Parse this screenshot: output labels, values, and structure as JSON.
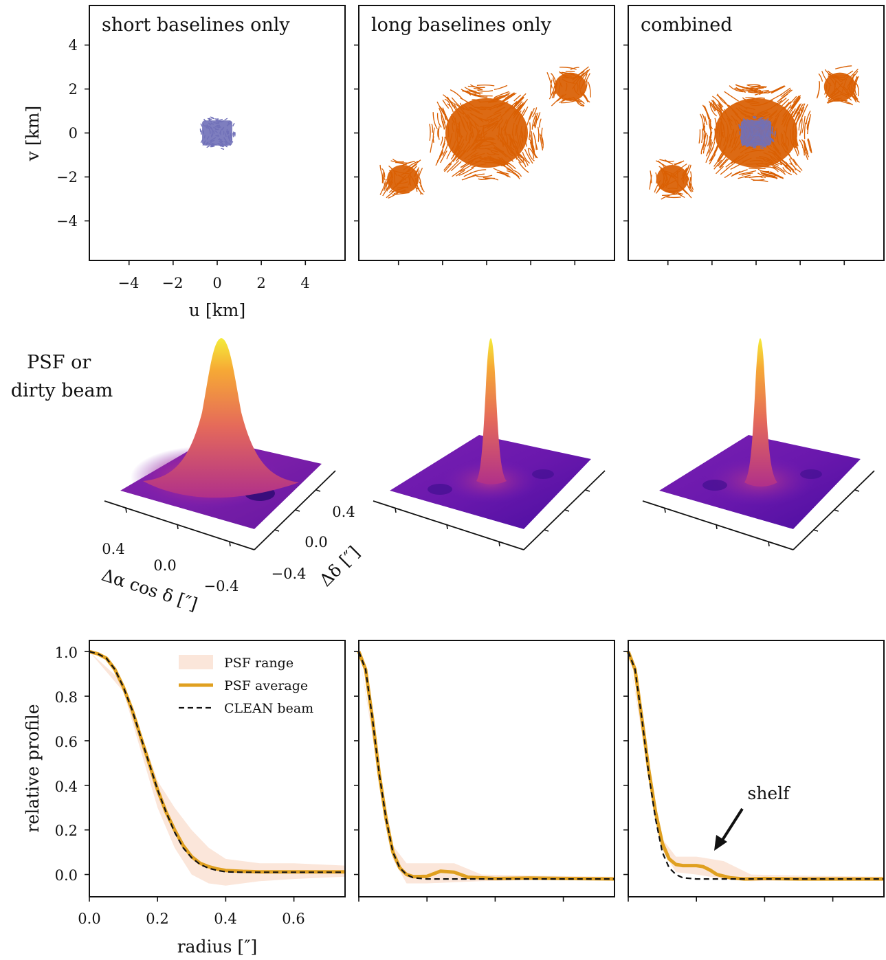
{
  "chart_data": [
    {
      "type": "scatter",
      "title": "short baselines only",
      "xlabel": "u [km]",
      "ylabel": "v [km]",
      "xlim": [
        -5.8,
        5.8
      ],
      "ylim": [
        -5.8,
        5.8
      ],
      "xticks": [
        "−4",
        "−2",
        "0",
        "2",
        "4"
      ],
      "yticks": [
        "4",
        "2",
        "0",
        "−2",
        "−4"
      ],
      "clusters": [
        {
          "name": "short",
          "color": "#7070b8",
          "center": [
            0,
            0
          ],
          "half_size": [
            0.9,
            0.75
          ]
        }
      ]
    },
    {
      "type": "scatter",
      "title": "long baselines only",
      "xlim": [
        -5.8,
        5.8
      ],
      "ylim": [
        -5.8,
        5.8
      ],
      "clusters": [
        {
          "name": "long",
          "color": "#d95f02",
          "center": [
            0,
            0
          ],
          "half_size": [
            2.6,
            2.2
          ]
        },
        {
          "name": "long",
          "color": "#d95f02",
          "center": [
            -3.8,
            -2.1
          ],
          "half_size": [
            1.0,
            0.9
          ]
        },
        {
          "name": "long",
          "color": "#d95f02",
          "center": [
            3.8,
            2.1
          ],
          "half_size": [
            1.0,
            0.9
          ]
        }
      ]
    },
    {
      "type": "scatter",
      "title": "combined",
      "xlim": [
        -5.8,
        5.8
      ],
      "ylim": [
        -5.8,
        5.8
      ],
      "clusters": [
        {
          "name": "long",
          "color": "#d95f02",
          "center": [
            0,
            0
          ],
          "half_size": [
            2.6,
            2.2
          ]
        },
        {
          "name": "long",
          "color": "#d95f02",
          "center": [
            -3.8,
            -2.1
          ],
          "half_size": [
            1.0,
            0.9
          ]
        },
        {
          "name": "long",
          "color": "#d95f02",
          "center": [
            3.8,
            2.1
          ],
          "half_size": [
            1.0,
            0.9
          ]
        },
        {
          "name": "short",
          "color": "#7070b8",
          "center": [
            0,
            0
          ],
          "half_size": [
            0.9,
            0.75
          ]
        }
      ]
    },
    {
      "type": "surface",
      "row_label": "PSF or\ndirty beam",
      "xlabel": "Δα cos δ [″]",
      "ylabel": "Δδ [″]",
      "xticks": [
        "0.4",
        "0.0",
        "−0.4"
      ],
      "yticks": [
        "0.4",
        "0.0",
        "−0.4"
      ],
      "peak_fwhm_arcsec": 0.3
    },
    {
      "type": "surface",
      "peak_fwhm_arcsec": 0.08
    },
    {
      "type": "surface",
      "peak_fwhm_arcsec": 0.08
    },
    {
      "type": "line",
      "xlabel": "radius [″]",
      "ylabel": "relative profile",
      "xlim": [
        0.0,
        0.75
      ],
      "ylim": [
        -0.1,
        1.05
      ],
      "xticks": [
        "0.0",
        "0.2",
        "0.4",
        "0.6"
      ],
      "yticks": [
        "1.0",
        "0.8",
        "0.6",
        "0.4",
        "0.2",
        "0.0"
      ],
      "legend": {
        "placement": "upper right",
        "entries": [
          "PSF range",
          "PSF average",
          "CLEAN beam"
        ]
      },
      "series": [
        {
          "name": "CLEAN beam",
          "x": [
            0.0,
            0.025,
            0.05,
            0.075,
            0.1,
            0.125,
            0.15,
            0.175,
            0.2,
            0.225,
            0.25,
            0.275,
            0.3,
            0.325,
            0.35,
            0.375,
            0.4,
            0.45,
            0.5,
            0.6,
            0.75
          ],
          "y": [
            1.0,
            0.99,
            0.97,
            0.92,
            0.84,
            0.74,
            0.62,
            0.5,
            0.38,
            0.28,
            0.19,
            0.12,
            0.075,
            0.045,
            0.028,
            0.018,
            0.012,
            0.01,
            0.01,
            0.01,
            0.01
          ]
        },
        {
          "name": "PSF average",
          "x": [
            0.0,
            0.025,
            0.05,
            0.075,
            0.1,
            0.125,
            0.15,
            0.175,
            0.2,
            0.225,
            0.25,
            0.275,
            0.3,
            0.325,
            0.35,
            0.375,
            0.4,
            0.45,
            0.5,
            0.6,
            0.75
          ],
          "y": [
            1.0,
            0.99,
            0.97,
            0.92,
            0.84,
            0.74,
            0.62,
            0.5,
            0.38,
            0.28,
            0.2,
            0.13,
            0.08,
            0.05,
            0.035,
            0.025,
            0.018,
            0.014,
            0.012,
            0.012,
            0.012
          ]
        },
        {
          "name": "PSF range",
          "x": [
            0.0,
            0.1,
            0.2,
            0.25,
            0.3,
            0.35,
            0.4,
            0.5,
            0.6,
            0.75
          ],
          "upper": [
            1.0,
            0.86,
            0.42,
            0.3,
            0.2,
            0.12,
            0.07,
            0.05,
            0.05,
            0.04
          ],
          "lower": [
            1.0,
            0.82,
            0.3,
            0.12,
            0.0,
            -0.04,
            -0.05,
            -0.03,
            -0.02,
            -0.01
          ]
        }
      ]
    },
    {
      "type": "line",
      "xlim": [
        0.0,
        0.75
      ],
      "ylim": [
        -0.1,
        1.05
      ],
      "series": [
        {
          "name": "CLEAN beam",
          "x": [
            0.0,
            0.02,
            0.04,
            0.06,
            0.08,
            0.1,
            0.12,
            0.14,
            0.16,
            0.2,
            0.3,
            0.5,
            0.75
          ],
          "y": [
            1.0,
            0.92,
            0.7,
            0.45,
            0.25,
            0.1,
            0.03,
            0.0,
            -0.015,
            -0.02,
            -0.02,
            -0.02,
            -0.02
          ]
        },
        {
          "name": "PSF average",
          "x": [
            0.0,
            0.02,
            0.04,
            0.06,
            0.08,
            0.1,
            0.12,
            0.14,
            0.16,
            0.2,
            0.24,
            0.28,
            0.32,
            0.4,
            0.5,
            0.6,
            0.75
          ],
          "y": [
            1.0,
            0.92,
            0.7,
            0.45,
            0.25,
            0.1,
            0.03,
            0.0,
            -0.01,
            -0.008,
            0.015,
            0.01,
            -0.012,
            -0.018,
            -0.016,
            -0.018,
            -0.02
          ]
        },
        {
          "name": "PSF range",
          "x": [
            0.0,
            0.06,
            0.1,
            0.14,
            0.2,
            0.28,
            0.36,
            0.5,
            0.75
          ],
          "upper": [
            1.0,
            0.47,
            0.13,
            0.05,
            0.05,
            0.05,
            0.0,
            -0.005,
            -0.01
          ],
          "lower": [
            1.0,
            0.43,
            0.07,
            -0.04,
            -0.04,
            -0.035,
            -0.03,
            -0.025,
            -0.025
          ]
        }
      ]
    },
    {
      "type": "line",
      "xlim": [
        0.0,
        0.75
      ],
      "ylim": [
        -0.1,
        1.05
      ],
      "annotations": [
        {
          "text": "shelf",
          "x": 0.24,
          "y": 0.038
        }
      ],
      "series": [
        {
          "name": "CLEAN beam",
          "x": [
            0.0,
            0.02,
            0.04,
            0.06,
            0.08,
            0.1,
            0.12,
            0.14,
            0.16,
            0.2,
            0.3,
            0.5,
            0.75
          ],
          "y": [
            1.0,
            0.92,
            0.7,
            0.45,
            0.25,
            0.1,
            0.03,
            0.0,
            -0.015,
            -0.02,
            -0.02,
            -0.02,
            -0.02
          ]
        },
        {
          "name": "PSF average",
          "x": [
            0.0,
            0.02,
            0.04,
            0.06,
            0.08,
            0.1,
            0.12,
            0.14,
            0.16,
            0.18,
            0.2,
            0.22,
            0.24,
            0.26,
            0.3,
            0.34,
            0.4,
            0.5,
            0.6,
            0.75
          ],
          "y": [
            1.0,
            0.92,
            0.7,
            0.47,
            0.28,
            0.14,
            0.07,
            0.045,
            0.04,
            0.04,
            0.04,
            0.035,
            0.02,
            0.0,
            -0.015,
            -0.02,
            -0.018,
            -0.02,
            -0.02,
            -0.02
          ]
        },
        {
          "name": "PSF range",
          "x": [
            0.0,
            0.06,
            0.1,
            0.14,
            0.2,
            0.28,
            0.36,
            0.5,
            0.75
          ],
          "upper": [
            1.0,
            0.49,
            0.16,
            0.08,
            0.08,
            0.06,
            0.0,
            -0.005,
            -0.01
          ],
          "lower": [
            1.0,
            0.45,
            0.11,
            0.01,
            0.0,
            -0.02,
            -0.03,
            -0.025,
            -0.025
          ]
        }
      ]
    }
  ],
  "colors": {
    "short": "#7070b8",
    "long": "#d95f02",
    "psf_avg": "#e0a020",
    "psf_range": "#fbe6da",
    "clean": "#111111"
  }
}
